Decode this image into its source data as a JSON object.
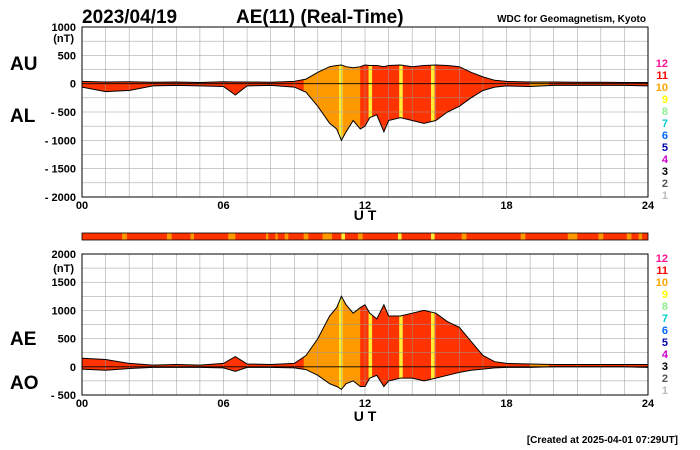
{
  "header": {
    "date": "2023/04/19",
    "title": "AE(11) (Real-Time)",
    "source": "WDC for Geomagnetism, Kyoto"
  },
  "footer": {
    "created": "[Created at 2025-04-01 07:29UT]"
  },
  "legend": {
    "activity_levels": [
      "12",
      "11",
      "10",
      "9",
      "8",
      "7",
      "6",
      "5",
      "4",
      "3",
      "2",
      "1"
    ],
    "colors": [
      "#ff1493",
      "#ff0000",
      "#ffa500",
      "#ffff00",
      "#90ee90",
      "#00ced1",
      "#0066ff",
      "#0000aa",
      "#cc00cc",
      "#000000",
      "#555555",
      "#bbbbbb"
    ]
  },
  "colors": {
    "orange": "#ff9900",
    "red": "#ff3300",
    "yellow": "#ffee33",
    "line": "#000000",
    "grid": "#999999"
  },
  "chart_data": [
    {
      "type": "area",
      "name": "AU/AL",
      "series_labels": [
        "AU",
        "AL"
      ],
      "ylabel": "(nT)",
      "xlabel": "U T",
      "xlim": [
        0,
        24
      ],
      "ylim": [
        -2000,
        1000
      ],
      "x_ticks": [
        "00",
        "06",
        "12",
        "18",
        "24"
      ],
      "y_ticks": [
        "1000",
        "500",
        "0",
        "- 500",
        "- 1000",
        "- 1500",
        "- 2000"
      ],
      "grid": true,
      "x": [
        0,
        1,
        2,
        3,
        4,
        5,
        6,
        6.5,
        7,
        8,
        9,
        9.5,
        10,
        10.5,
        10.8,
        11,
        11.2,
        11.5,
        11.8,
        12,
        12.2,
        12.5,
        12.8,
        13,
        13.5,
        14,
        14.5,
        15,
        15.5,
        16,
        16.5,
        17,
        17.5,
        18,
        19,
        20,
        21,
        22,
        23,
        24
      ],
      "AU": [
        40,
        30,
        35,
        25,
        30,
        20,
        35,
        30,
        30,
        25,
        40,
        80,
        200,
        300,
        320,
        330,
        300,
        280,
        300,
        330,
        320,
        320,
        300,
        320,
        330,
        300,
        320,
        330,
        320,
        300,
        200,
        120,
        60,
        40,
        30,
        30,
        25,
        25,
        20,
        20
      ],
      "AL": [
        -60,
        -140,
        -120,
        -40,
        -30,
        -40,
        -50,
        -200,
        -40,
        -30,
        -60,
        -150,
        -400,
        -700,
        -800,
        -1000,
        -850,
        -650,
        -800,
        -750,
        -600,
        -550,
        -850,
        -650,
        -600,
        -650,
        -700,
        -650,
        -500,
        -400,
        -250,
        -120,
        -60,
        -40,
        -50,
        -30,
        -30,
        -30,
        -30,
        -40
      ]
    },
    {
      "type": "area",
      "name": "AE/AO",
      "series_labels": [
        "AE",
        "AO"
      ],
      "ylabel": "(nT)",
      "xlabel": "U T",
      "xlim": [
        0,
        24
      ],
      "ylim": [
        -500,
        2000
      ],
      "x_ticks": [
        "00",
        "06",
        "12",
        "18",
        "24"
      ],
      "y_ticks": [
        "2000",
        "1500",
        "1000",
        "500",
        "0",
        "- 500"
      ],
      "grid": true,
      "x": [
        0,
        1,
        2,
        3,
        4,
        5,
        6,
        6.5,
        7,
        8,
        9,
        9.5,
        10,
        10.5,
        10.8,
        11,
        11.2,
        11.5,
        11.8,
        12,
        12.2,
        12.5,
        12.8,
        13,
        13.5,
        14,
        14.5,
        15,
        15.5,
        16,
        16.5,
        17,
        17.5,
        18,
        19,
        20,
        21,
        22,
        23,
        24
      ],
      "AE": [
        150,
        130,
        60,
        30,
        40,
        30,
        60,
        180,
        50,
        40,
        60,
        200,
        500,
        900,
        1050,
        1250,
        1100,
        950,
        1050,
        1100,
        950,
        850,
        1100,
        900,
        900,
        950,
        1000,
        950,
        800,
        700,
        450,
        200,
        90,
        60,
        50,
        40,
        40,
        40,
        40,
        40
      ],
      "AO": [
        -40,
        -60,
        -30,
        -10,
        -10,
        -10,
        -20,
        -80,
        -10,
        -10,
        -20,
        -50,
        -150,
        -300,
        -350,
        -400,
        -300,
        -250,
        -350,
        -350,
        -200,
        -150,
        -350,
        -250,
        -200,
        -200,
        -250,
        -200,
        -150,
        -100,
        -60,
        -40,
        -20,
        -10,
        -10,
        0,
        0,
        0,
        0,
        -10
      ]
    }
  ],
  "activity_bands": {
    "orange": [
      [
        9.4,
        11.8
      ],
      [
        19.0,
        19.8
      ]
    ],
    "red": [
      [
        11.8,
        17.0
      ]
    ],
    "yellow": [
      [
        10.9,
        11.05
      ],
      [
        12.15,
        12.3
      ],
      [
        13.45,
        13.6
      ],
      [
        14.8,
        14.95
      ]
    ]
  },
  "status_strip": {
    "base": "red",
    "segments": [
      {
        "from": 1.7,
        "to": 1.9,
        "level": "orange"
      },
      {
        "from": 3.6,
        "to": 3.8,
        "level": "orange"
      },
      {
        "from": 4.6,
        "to": 4.75,
        "level": "orange"
      },
      {
        "from": 6.2,
        "to": 6.5,
        "level": "orange"
      },
      {
        "from": 7.8,
        "to": 7.9,
        "level": "orange"
      },
      {
        "from": 8.2,
        "to": 8.3,
        "level": "orange"
      },
      {
        "from": 8.6,
        "to": 8.75,
        "level": "orange"
      },
      {
        "from": 9.4,
        "to": 9.6,
        "level": "orange"
      },
      {
        "from": 10.2,
        "to": 10.6,
        "level": "orange"
      },
      {
        "from": 11.0,
        "to": 11.15,
        "level": "yellow"
      },
      {
        "from": 11.7,
        "to": 11.9,
        "level": "orange"
      },
      {
        "from": 13.4,
        "to": 13.55,
        "level": "yellow"
      },
      {
        "from": 14.8,
        "to": 14.95,
        "level": "yellow"
      },
      {
        "from": 16.1,
        "to": 16.3,
        "level": "orange"
      },
      {
        "from": 18.6,
        "to": 18.8,
        "level": "orange"
      },
      {
        "from": 20.6,
        "to": 21.0,
        "level": "orange"
      },
      {
        "from": 21.9,
        "to": 22.1,
        "level": "orange"
      },
      {
        "from": 23.1,
        "to": 23.3,
        "level": "orange"
      },
      {
        "from": 23.6,
        "to": 23.75,
        "level": "orange"
      }
    ]
  }
}
